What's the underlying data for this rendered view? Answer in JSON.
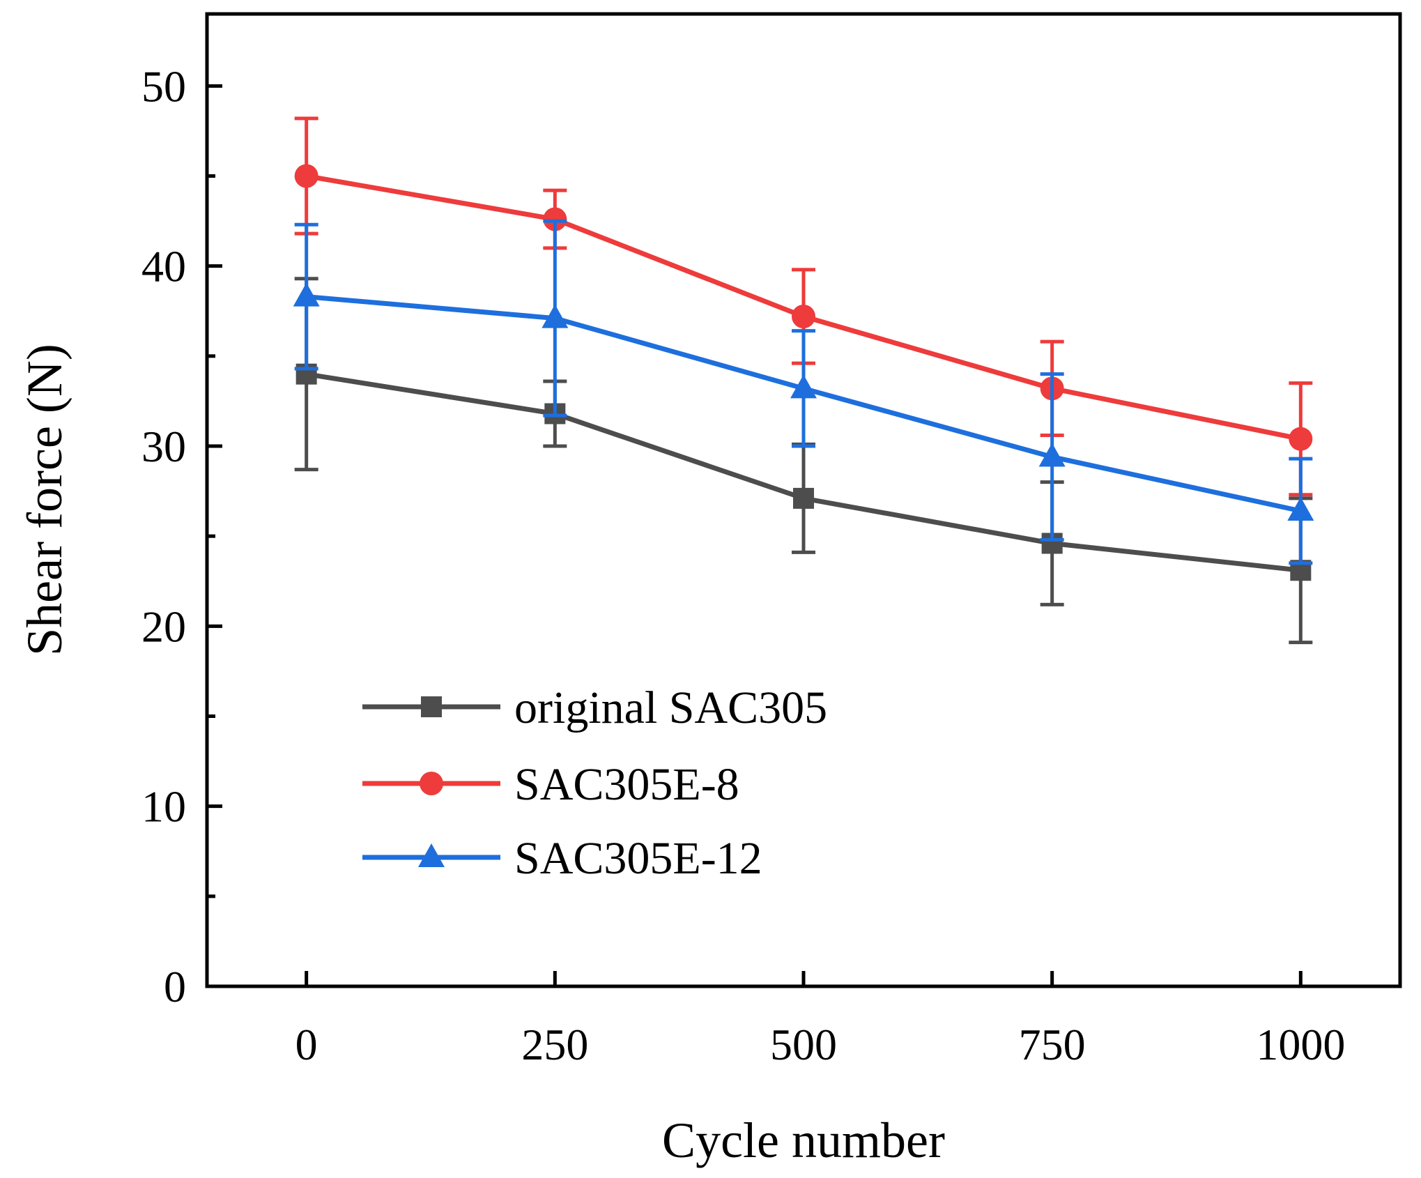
{
  "chart_data": {
    "type": "line",
    "title": "",
    "xlabel": "Cycle number",
    "ylabel": "Shear force (N)",
    "x": [
      0,
      250,
      500,
      750,
      1000
    ],
    "xticks": [
      "0",
      "250",
      "500",
      "750",
      "1000"
    ],
    "yticks": [
      "0",
      "10",
      "20",
      "30",
      "40",
      "50"
    ],
    "ylim": [
      0,
      54
    ],
    "xlim": [
      -100,
      1100
    ],
    "grid": false,
    "legend_position": "lower-left",
    "series": [
      {
        "name": "original SAC305",
        "color": "#4d4d4d",
        "marker": "square",
        "values": [
          34.0,
          31.8,
          27.1,
          24.6,
          23.1
        ],
        "errors": [
          5.3,
          1.8,
          3.0,
          3.4,
          4.0
        ]
      },
      {
        "name": "SAC305E-8",
        "color": "#ee3b3b",
        "marker": "circle",
        "values": [
          45.0,
          42.6,
          37.2,
          33.2,
          30.4
        ],
        "errors": [
          3.2,
          1.6,
          2.6,
          2.6,
          3.1
        ]
      },
      {
        "name": "SAC305E-12",
        "color": "#1e6fdd",
        "marker": "triangle",
        "values": [
          38.3,
          37.1,
          33.2,
          29.4,
          26.4
        ],
        "errors": [
          4.0,
          5.4,
          3.2,
          4.6,
          2.9
        ]
      }
    ]
  }
}
